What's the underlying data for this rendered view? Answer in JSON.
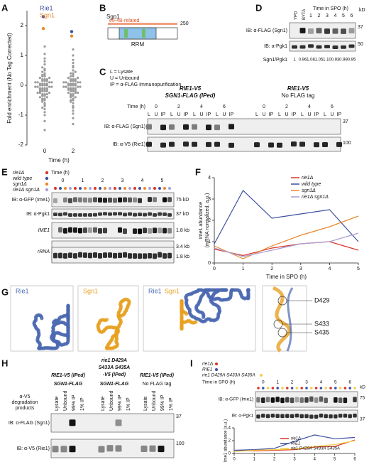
{
  "panel_labels": [
    "A",
    "B",
    "C",
    "D",
    "E",
    "F",
    "G",
    "H",
    "I"
  ],
  "chart_data": [
    {
      "type": "swarm",
      "categories": [
        "0",
        "2"
      ],
      "xlabel": "Time (h)",
      "ylabel": "Fold enrichment (No Tag Corrected)",
      "ylim": [
        -2,
        2.5
      ],
      "yticks": [
        -2,
        -1,
        0,
        1,
        2
      ],
      "point_color": "#9a9a9a",
      "points": [
        [
          -1.5,
          -1.2,
          -1.0,
          -0.9,
          -0.8,
          -0.75,
          -0.7,
          -0.65,
          -0.6,
          -0.55,
          -0.5,
          -0.5,
          -0.45,
          -0.45,
          -0.4,
          -0.4,
          -0.35,
          -0.35,
          -0.3,
          -0.3,
          -0.3,
          -0.25,
          -0.25,
          -0.25,
          -0.2,
          -0.2,
          -0.2,
          -0.2,
          -0.15,
          -0.15,
          -0.15,
          -0.15,
          -0.1,
          -0.1,
          -0.1,
          -0.1,
          -0.05,
          -0.05,
          -0.05,
          -0.05,
          0,
          0,
          0,
          0,
          0.05,
          0.05,
          0.05,
          0.05,
          0.1,
          0.1,
          0.1,
          0.1,
          0.15,
          0.15,
          0.15,
          0.2,
          0.2,
          0.2,
          0.25,
          0.25,
          0.3,
          0.3,
          0.35,
          0.35,
          0.4,
          0.45,
          0.5,
          0.55,
          0.6,
          0.7,
          0.8,
          0.9,
          1.05,
          1.3
        ],
        [
          -1.3,
          -1.1,
          -0.95,
          -0.85,
          -0.75,
          -0.7,
          -0.6,
          -0.55,
          -0.5,
          -0.5,
          -0.45,
          -0.4,
          -0.4,
          -0.35,
          -0.35,
          -0.3,
          -0.3,
          -0.25,
          -0.25,
          -0.25,
          -0.2,
          -0.2,
          -0.2,
          -0.15,
          -0.15,
          -0.15,
          -0.15,
          -0.1,
          -0.1,
          -0.1,
          -0.1,
          -0.05,
          -0.05,
          -0.05,
          -0.05,
          0,
          0,
          0,
          0,
          0.05,
          0.05,
          0.05,
          0.05,
          0.1,
          0.1,
          0.1,
          0.1,
          0.15,
          0.15,
          0.15,
          0.2,
          0.2,
          0.2,
          0.25,
          0.25,
          0.3,
          0.3,
          0.35,
          0.4,
          0.4,
          0.45,
          0.5,
          0.6,
          0.65,
          0.75,
          0.85,
          1.0,
          1.2
        ]
      ],
      "series": [
        {
          "name": "Rie1",
          "color": "#3b4fa0",
          "values": [
            2.3,
            1.8
          ]
        },
        {
          "name": "Sgn1",
          "color": "#e8892a",
          "values": [
            1.9,
            1.65
          ]
        }
      ]
    },
    {
      "type": "line",
      "ylabel": [
        "Ime1 abundance",
        "(mRNA normalized, a.u.)"
      ],
      "xlabel": "Time in SPO (h)",
      "x": [
        0,
        1,
        2,
        3,
        4,
        5
      ],
      "xlim": [
        0,
        5
      ],
      "xticks": [
        0,
        1,
        2,
        3,
        4,
        5
      ],
      "ylim": [
        0,
        4
      ],
      "yticks": [
        0,
        1,
        2,
        3,
        4
      ],
      "legend": "top-right",
      "series": [
        {
          "name": "rie1Δ",
          "color": "#d9342b",
          "values": [
            0.65,
            0.35,
            0.7,
            0.9,
            1.0,
            0.6
          ]
        },
        {
          "name": "wild type",
          "color": "#3b4fa0",
          "values": [
            0.9,
            3.4,
            2.1,
            2.3,
            2.5,
            1.0
          ]
        },
        {
          "name": "sgn1Δ",
          "color": "#e8892a",
          "values": [
            0.8,
            0.2,
            0.8,
            1.3,
            1.7,
            2.2
          ]
        },
        {
          "name": "rie1Δ sgn1Δ",
          "color": "#a99fd6",
          "values": [
            0.7,
            0.3,
            0.6,
            0.9,
            1.0,
            1.4
          ]
        }
      ]
    },
    {
      "type": "line",
      "ylabel": [
        "Ime1 abundance (a.u.)"
      ],
      "x": [
        0,
        1,
        2,
        3,
        4,
        5,
        6
      ],
      "xlim": [
        0,
        6
      ],
      "xticks": [
        0,
        1,
        2,
        3,
        4,
        5,
        6
      ],
      "ylim": [
        0,
        4
      ],
      "yticks": [
        0,
        2,
        4
      ],
      "legend": "top-right",
      "series": [
        {
          "name": "rie1Δ",
          "color": "#d9342b",
          "values": [
            0.5,
            0.4,
            0.5,
            0.6,
            1.0,
            1.1,
            2.1
          ]
        },
        {
          "name": "RIE1",
          "color": "#3b4fa0",
          "values": [
            0.5,
            0.6,
            0.8,
            1.9,
            2.9,
            2.3,
            2.5
          ]
        },
        {
          "name": "rie1 D429A S433A S435A",
          "color": "#f2d04a",
          "values": [
            0.3,
            0.5,
            0.6,
            0.7,
            1.1,
            1.4,
            2.0
          ]
        }
      ]
    }
  ],
  "panel_b": {
    "protein": "Sgn1",
    "region": "eIF4B-related",
    "length": "250",
    "domain": "RRM"
  },
  "panel_c": {
    "legend": [
      "L = Lysate",
      "U = Unbound",
      "IP = α-FLAG Immunopurification"
    ],
    "strain1": [
      "RIE1-V5",
      "SGN1-FLAG (IPed)"
    ],
    "strain2": [
      "RIE1-V5",
      "No FLAG tag"
    ],
    "time_label": "Time (h)",
    "times": [
      "0",
      "2",
      "4",
      "6"
    ],
    "lanes": [
      "L",
      "U",
      "IP"
    ],
    "blots": [
      "IB: α-FLAG (Sgn1)",
      "IB: α-V5 (Rie1)"
    ],
    "markers": [
      "37",
      "100"
    ]
  },
  "panel_d": {
    "kd": "kD",
    "conditions": [
      "YPD",
      "BYTA"
    ],
    "time_label": "Time in SPO (h)",
    "times": [
      "1",
      "2",
      "3",
      "4",
      "5",
      "6"
    ],
    "blots": [
      "IB: α-FLAG (Sgn1)",
      "IB: α-Pgk1"
    ],
    "markers": [
      "37",
      "50"
    ],
    "ratio_label": "Sgn1/Pgk1",
    "ratios": [
      "1",
      "0.96",
      "1.08",
      "1.05",
      "1.10",
      "0.93",
      "0.99",
      "0.95"
    ]
  },
  "panel_e": {
    "strains": [
      {
        "name": "rie1Δ",
        "color": "#d9342b"
      },
      {
        "name": "wild type",
        "color": "#3b4fa0"
      },
      {
        "name": "sgn1Δ",
        "color": "#e8892a"
      },
      {
        "name": "rie1Δ sgn1Δ",
        "color": "#a99fd6"
      }
    ],
    "time_label": "Time (h)",
    "times": [
      "0",
      "1",
      "2",
      "3",
      "4",
      "5"
    ],
    "blots": [
      "IB: α-GFP (Ime1)",
      "IB: α-Pgk1",
      "IME1",
      "rRNA"
    ],
    "markers": [
      "75 kD",
      "37 kD",
      "1.8 kb",
      "3.4 kb",
      "1.8 kb"
    ]
  },
  "panel_g": {
    "labels": [
      {
        "text": "Rie1",
        "color": "#4a67b0"
      },
      {
        "text": "Sgn1",
        "color": "#e8a020"
      }
    ],
    "residues": [
      "D429",
      "S433",
      "S435"
    ]
  },
  "panel_h": {
    "strain1": [
      "RIE1-V5 (IPed)",
      "SGN1-FLAG"
    ],
    "strain2": [
      "rie1 D429A",
      "S433A S435A",
      "-V5 (IPed)",
      "SGN1-FLAG"
    ],
    "strain3": [
      "RIE1-V5 (IPed)",
      "No FLAG tag"
    ],
    "lanes": [
      "Lysate",
      "Unbound",
      "99% IP",
      "1% IP"
    ],
    "side": [
      "α-V5",
      "degradation",
      "products"
    ],
    "blots": [
      "IB: α-FLAG (Sgn1)",
      "IB: α-V5 (Rie1)"
    ],
    "markers": [
      "37",
      "100"
    ]
  },
  "panel_i": {
    "time_label": "Time in SPO (h)",
    "times": [
      "0",
      "1",
      "2",
      "3",
      "4",
      "5",
      "6"
    ],
    "blots": [
      "IB: α-GFP (Ime1)",
      "IB: α-Pgk1"
    ],
    "kd": "kD",
    "markers": [
      "75",
      "37"
    ]
  }
}
